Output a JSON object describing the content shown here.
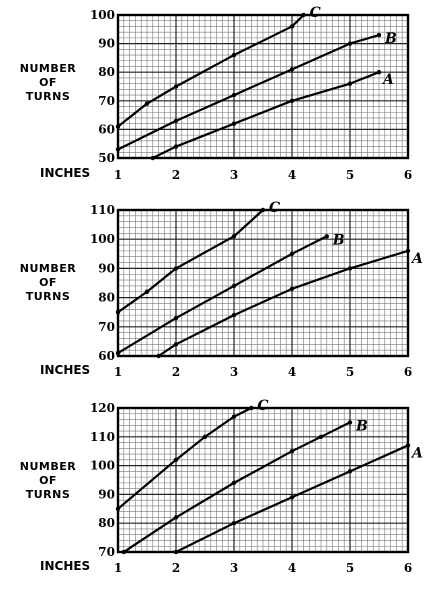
{
  "chart_data": [
    {
      "type": "line",
      "ylabel_lines": [
        "NUMBER",
        "OF",
        "TURNS"
      ],
      "xunit_label": "INCHES",
      "x_ticks": [
        "1",
        "2",
        "3",
        "4",
        "5",
        "6"
      ],
      "y_ticks": [
        "50",
        "60",
        "70",
        "80",
        "90",
        "100"
      ],
      "xlim": [
        1,
        6
      ],
      "ylim": [
        50,
        100
      ],
      "series": [
        {
          "name": "C",
          "x": [
            1.0,
            1.5,
            2.0,
            3.0,
            4.0,
            4.2
          ],
          "y": [
            61,
            69,
            75,
            86,
            96,
            100
          ]
        },
        {
          "name": "B",
          "x": [
            1.0,
            2.0,
            3.0,
            4.0,
            5.0,
            5.5
          ],
          "y": [
            53,
            63,
            72,
            81,
            90,
            93
          ]
        },
        {
          "name": "A",
          "x": [
            1.6,
            2.0,
            3.0,
            4.0,
            5.0,
            5.5
          ],
          "y": [
            50,
            54,
            62,
            70,
            76,
            80
          ]
        }
      ]
    },
    {
      "type": "line",
      "ylabel_lines": [
        "NUMBER",
        "OF",
        "TURNS"
      ],
      "xunit_label": "INCHES",
      "x_ticks": [
        "1",
        "2",
        "3",
        "4",
        "5",
        "6"
      ],
      "y_ticks": [
        "60",
        "70",
        "80",
        "90",
        "100",
        "110"
      ],
      "xlim": [
        1,
        6
      ],
      "ylim": [
        60,
        110
      ],
      "series": [
        {
          "name": "C",
          "x": [
            1.0,
            1.5,
            2.0,
            3.0,
            3.5
          ],
          "y": [
            75,
            82,
            90,
            101,
            110
          ]
        },
        {
          "name": "B",
          "x": [
            1.0,
            2.0,
            3.0,
            4.0,
            4.6
          ],
          "y": [
            61,
            73,
            84,
            95,
            101
          ]
        },
        {
          "name": "A",
          "x": [
            1.7,
            2.0,
            3.0,
            4.0,
            5.0,
            6.0
          ],
          "y": [
            60,
            64,
            74,
            83,
            90,
            96
          ]
        }
      ]
    },
    {
      "type": "line",
      "ylabel_lines": [
        "NUMBER",
        "OF",
        "TURNS"
      ],
      "xunit_label": "INCHES",
      "x_ticks": [
        "1",
        "2",
        "3",
        "4",
        "5",
        "6"
      ],
      "y_ticks": [
        "70",
        "80",
        "90",
        "100",
        "110",
        "120"
      ],
      "xlim": [
        1,
        6
      ],
      "ylim": [
        70,
        120
      ],
      "series": [
        {
          "name": "C",
          "x": [
            1.0,
            2.0,
            2.5,
            3.0,
            3.3
          ],
          "y": [
            85,
            102,
            110,
            117,
            120
          ]
        },
        {
          "name": "B",
          "x": [
            1.1,
            2.0,
            3.0,
            4.0,
            4.5,
            5.0
          ],
          "y": [
            70,
            82,
            94,
            105,
            110,
            115
          ]
        },
        {
          "name": "A",
          "x": [
            2.0,
            3.0,
            4.0,
            5.0,
            6.0
          ],
          "y": [
            70,
            80,
            89,
            98,
            107
          ]
        }
      ]
    }
  ]
}
